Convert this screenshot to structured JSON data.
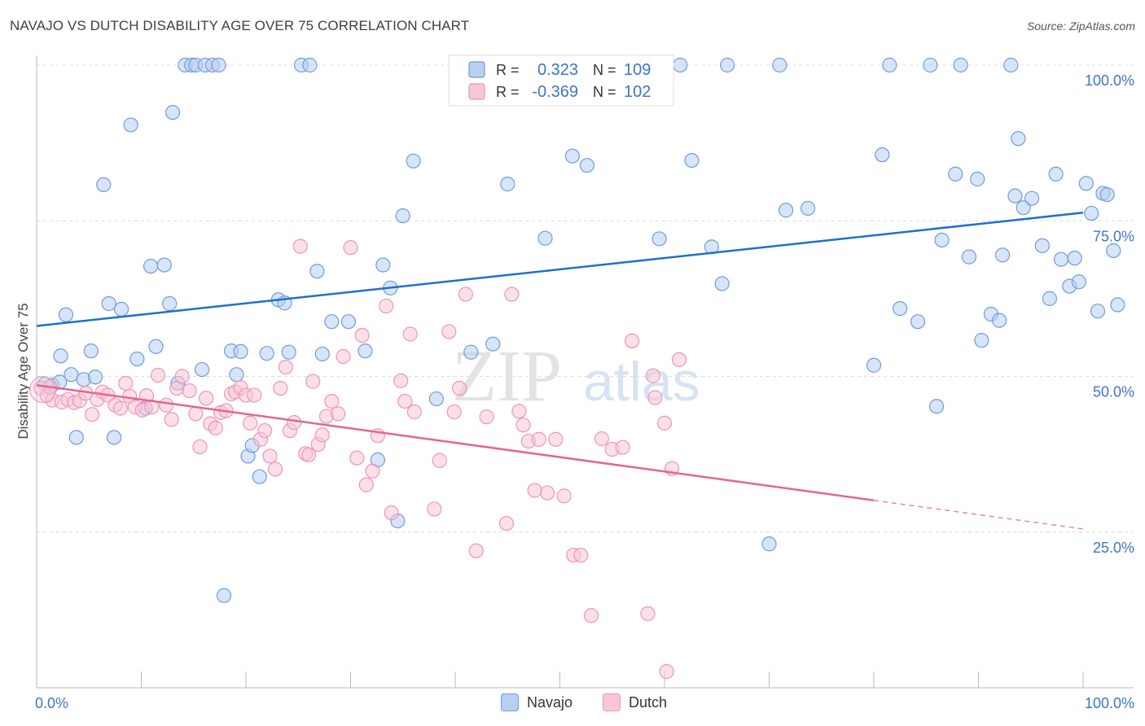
{
  "title": "NAVAJO VS DUTCH DISABILITY AGE OVER 75 CORRELATION CHART",
  "source": "Source: ZipAtlas.com",
  "chart_data": {
    "type": "scatter",
    "ylabel": "Disability Age Over 75",
    "xlabel": "",
    "xlim": [
      0,
      100
    ],
    "ylim": [
      0,
      100
    ],
    "x_tick_labels": [
      {
        "value": 0,
        "label": "0.0%"
      },
      {
        "value": 100,
        "label": "100.0%"
      }
    ],
    "y_tick_labels": [
      {
        "value": 25,
        "label": "25.0%"
      },
      {
        "value": 50,
        "label": "50.0%"
      },
      {
        "value": 75,
        "label": "75.0%"
      },
      {
        "value": 100,
        "label": "100.0%"
      }
    ],
    "grid": true,
    "watermark": {
      "zip": "ZIP",
      "atlas": "atlas"
    },
    "legend_stats": [
      {
        "r_label": "R =",
        "r_value": "0.323",
        "n_label": "N =",
        "n_value": "109"
      },
      {
        "r_label": "R =",
        "r_value": "-0.369",
        "n_label": "N =",
        "n_value": "102"
      }
    ],
    "series": [
      {
        "name": "Navajo",
        "color": "#6f9be0",
        "fill": "#b7cff2",
        "line_color": "#1f6fd0",
        "trend": {
          "x0": 0,
          "y0": 58.1,
          "x1": 100,
          "y1": 76.3
        },
        "points": [
          [
            0.8,
            48.8
          ],
          [
            1.5,
            48.6
          ],
          [
            2.2,
            49.1
          ],
          [
            2.3,
            53.3
          ],
          [
            2.8,
            59.9
          ],
          [
            3.3,
            50.3
          ],
          [
            3.8,
            40.2
          ],
          [
            4.5,
            49.5
          ],
          [
            5.2,
            54.1
          ],
          [
            5.6,
            49.9
          ],
          [
            6.4,
            80.8
          ],
          [
            6.9,
            61.7
          ],
          [
            7.4,
            40.2
          ],
          [
            8.1,
            60.8
          ],
          [
            9.0,
            90.4
          ],
          [
            9.6,
            52.8
          ],
          [
            10.4,
            44.9
          ],
          [
            10.9,
            67.7
          ],
          [
            11.4,
            54.8
          ],
          [
            12.2,
            67.9
          ],
          [
            12.7,
            61.7
          ],
          [
            13.0,
            92.4
          ],
          [
            13.5,
            48.9
          ],
          [
            14.2,
            100.0
          ],
          [
            14.8,
            100.0
          ],
          [
            15.2,
            100.0
          ],
          [
            15.8,
            51.1
          ],
          [
            16.1,
            100.0
          ],
          [
            16.8,
            100.0
          ],
          [
            17.4,
            100.0
          ],
          [
            17.9,
            14.8
          ],
          [
            18.6,
            54.1
          ],
          [
            19.1,
            50.3
          ],
          [
            19.5,
            54.0
          ],
          [
            20.2,
            37.2
          ],
          [
            20.6,
            38.9
          ],
          [
            21.3,
            33.9
          ],
          [
            22.0,
            53.7
          ],
          [
            23.1,
            62.3
          ],
          [
            23.7,
            61.8
          ],
          [
            24.1,
            53.9
          ],
          [
            25.3,
            100.0
          ],
          [
            26.1,
            100.0
          ],
          [
            26.8,
            66.9
          ],
          [
            27.3,
            53.6
          ],
          [
            28.2,
            58.8
          ],
          [
            29.8,
            58.8
          ],
          [
            31.4,
            54.1
          ],
          [
            32.6,
            36.6
          ],
          [
            33.1,
            67.9
          ],
          [
            33.8,
            64.2
          ],
          [
            34.5,
            26.8
          ],
          [
            35.0,
            75.8
          ],
          [
            36.0,
            84.6
          ],
          [
            38.2,
            46.4
          ],
          [
            40.1,
            100.0
          ],
          [
            41.5,
            53.9
          ],
          [
            43.6,
            55.2
          ],
          [
            45.0,
            80.9
          ],
          [
            48.6,
            72.2
          ],
          [
            50.0,
            100.0
          ],
          [
            51.2,
            85.4
          ],
          [
            52.6,
            83.9
          ],
          [
            58.1,
            100.0
          ],
          [
            59.5,
            72.1
          ],
          [
            61.5,
            100.0
          ],
          [
            62.6,
            84.7
          ],
          [
            64.5,
            70.8
          ],
          [
            65.5,
            64.9
          ],
          [
            66.0,
            100.0
          ],
          [
            70.0,
            23.1
          ],
          [
            71.0,
            100.0
          ],
          [
            71.6,
            76.7
          ],
          [
            73.7,
            77.0
          ],
          [
            80.0,
            51.8
          ],
          [
            80.8,
            85.6
          ],
          [
            81.5,
            100.0
          ],
          [
            82.5,
            60.9
          ],
          [
            84.2,
            58.8
          ],
          [
            85.4,
            100.0
          ],
          [
            86.0,
            45.2
          ],
          [
            86.5,
            71.9
          ],
          [
            87.8,
            82.5
          ],
          [
            88.3,
            100.0
          ],
          [
            89.1,
            69.2
          ],
          [
            89.9,
            81.7
          ],
          [
            90.3,
            55.8
          ],
          [
            91.2,
            60.0
          ],
          [
            92.0,
            59.0
          ],
          [
            92.3,
            69.5
          ],
          [
            93.1,
            100.0
          ],
          [
            93.5,
            79.0
          ],
          [
            93.8,
            88.2
          ],
          [
            94.3,
            77.1
          ],
          [
            95.1,
            78.6
          ],
          [
            96.1,
            71.0
          ],
          [
            96.8,
            62.5
          ],
          [
            97.4,
            82.5
          ],
          [
            97.9,
            68.8
          ],
          [
            98.7,
            64.5
          ],
          [
            99.2,
            69.0
          ],
          [
            99.6,
            65.2
          ],
          [
            100.3,
            81.0
          ],
          [
            100.8,
            76.2
          ],
          [
            101.4,
            60.5
          ],
          [
            101.9,
            79.4
          ],
          [
            102.3,
            79.2
          ],
          [
            102.9,
            70.2
          ],
          [
            103.3,
            61.5
          ]
        ]
      },
      {
        "name": "Dutch",
        "color": "#ef95b3",
        "fill": "#f7c7d7",
        "line_color": "#e3668f",
        "trend": {
          "x0": 0,
          "y0": 48.6,
          "x1": 80,
          "y1": 30.1
        },
        "trend_dashed": {
          "x0": 80,
          "y0": 30.1,
          "x1": 100,
          "y1": 25.5
        },
        "points": [
          [
            0.4,
            48.1
          ],
          [
            1.0,
            46.9
          ],
          [
            1.3,
            48.3
          ],
          [
            1.5,
            46.2
          ],
          [
            2.4,
            45.9
          ],
          [
            3.0,
            46.3
          ],
          [
            3.6,
            45.8
          ],
          [
            4.1,
            46.1
          ],
          [
            4.7,
            47.3
          ],
          [
            5.3,
            43.9
          ],
          [
            5.8,
            46.3
          ],
          [
            6.3,
            47.5
          ],
          [
            6.8,
            47.0
          ],
          [
            7.5,
            45.4
          ],
          [
            8.0,
            44.9
          ],
          [
            8.5,
            48.9
          ],
          [
            8.9,
            46.8
          ],
          [
            9.4,
            45.1
          ],
          [
            10.1,
            44.6
          ],
          [
            10.5,
            46.9
          ],
          [
            11.0,
            45.1
          ],
          [
            11.6,
            50.2
          ],
          [
            12.4,
            45.4
          ],
          [
            12.9,
            43.1
          ],
          [
            13.4,
            48.1
          ],
          [
            13.9,
            50.0
          ],
          [
            14.6,
            47.7
          ],
          [
            15.2,
            44.0
          ],
          [
            15.6,
            38.7
          ],
          [
            16.2,
            46.5
          ],
          [
            16.6,
            42.4
          ],
          [
            17.1,
            41.7
          ],
          [
            17.6,
            44.2
          ],
          [
            18.1,
            44.5
          ],
          [
            18.6,
            47.2
          ],
          [
            19.0,
            47.5
          ],
          [
            19.5,
            48.2
          ],
          [
            20.0,
            47.0
          ],
          [
            20.4,
            42.5
          ],
          [
            20.8,
            47.0
          ],
          [
            21.4,
            39.9
          ],
          [
            21.8,
            41.3
          ],
          [
            22.3,
            37.2
          ],
          [
            22.8,
            35.1
          ],
          [
            23.3,
            48.1
          ],
          [
            23.8,
            51.5
          ],
          [
            24.2,
            41.3
          ],
          [
            24.6,
            42.6
          ],
          [
            25.2,
            70.9
          ],
          [
            25.7,
            37.6
          ],
          [
            26.0,
            37.4
          ],
          [
            26.4,
            49.2
          ],
          [
            26.9,
            39.1
          ],
          [
            27.3,
            40.6
          ],
          [
            27.7,
            43.6
          ],
          [
            28.2,
            46.0
          ],
          [
            28.8,
            44.0
          ],
          [
            29.3,
            53.2
          ],
          [
            30.0,
            70.7
          ],
          [
            30.6,
            36.9
          ],
          [
            31.1,
            56.6
          ],
          [
            31.5,
            32.6
          ],
          [
            32.1,
            34.8
          ],
          [
            32.6,
            40.5
          ],
          [
            33.4,
            61.3
          ],
          [
            33.9,
            28.1
          ],
          [
            34.8,
            49.3
          ],
          [
            35.2,
            46.0
          ],
          [
            35.7,
            56.8
          ],
          [
            36.1,
            44.3
          ],
          [
            38.0,
            28.7
          ],
          [
            38.5,
            36.5
          ],
          [
            39.4,
            57.2
          ],
          [
            39.9,
            44.3
          ],
          [
            40.4,
            48.1
          ],
          [
            41.0,
            63.2
          ],
          [
            42.0,
            22.0
          ],
          [
            43.0,
            43.5
          ],
          [
            44.9,
            26.4
          ],
          [
            45.4,
            63.2
          ],
          [
            46.1,
            44.4
          ],
          [
            46.5,
            42.2
          ],
          [
            47.0,
            39.6
          ],
          [
            47.6,
            31.7
          ],
          [
            48.0,
            39.9
          ],
          [
            48.8,
            31.3
          ],
          [
            49.6,
            39.9
          ],
          [
            50.4,
            30.8
          ],
          [
            51.3,
            21.3
          ],
          [
            52.0,
            21.3
          ],
          [
            53.0,
            11.6
          ],
          [
            54.0,
            40.0
          ],
          [
            55.0,
            38.3
          ],
          [
            56.0,
            38.6
          ],
          [
            56.9,
            55.7
          ],
          [
            58.4,
            11.9
          ],
          [
            58.9,
            50.1
          ],
          [
            60.2,
            2.6
          ],
          [
            60.7,
            35.2
          ],
          [
            61.4,
            52.7
          ],
          [
            59.1,
            46.6
          ],
          [
            60.0,
            42.5
          ]
        ]
      }
    ]
  },
  "legend_bottom": [
    {
      "label": "Navajo",
      "fill": "#b7cff2",
      "stroke": "#6f9be0"
    },
    {
      "label": "Dutch",
      "fill": "#f7c7d7",
      "stroke": "#ef95b3"
    }
  ],
  "colors": {
    "tick_label": "#3f74c9",
    "grid": "#dcdcdc",
    "axis": "#bbbbbb",
    "watermark": "#e6e6e6"
  }
}
